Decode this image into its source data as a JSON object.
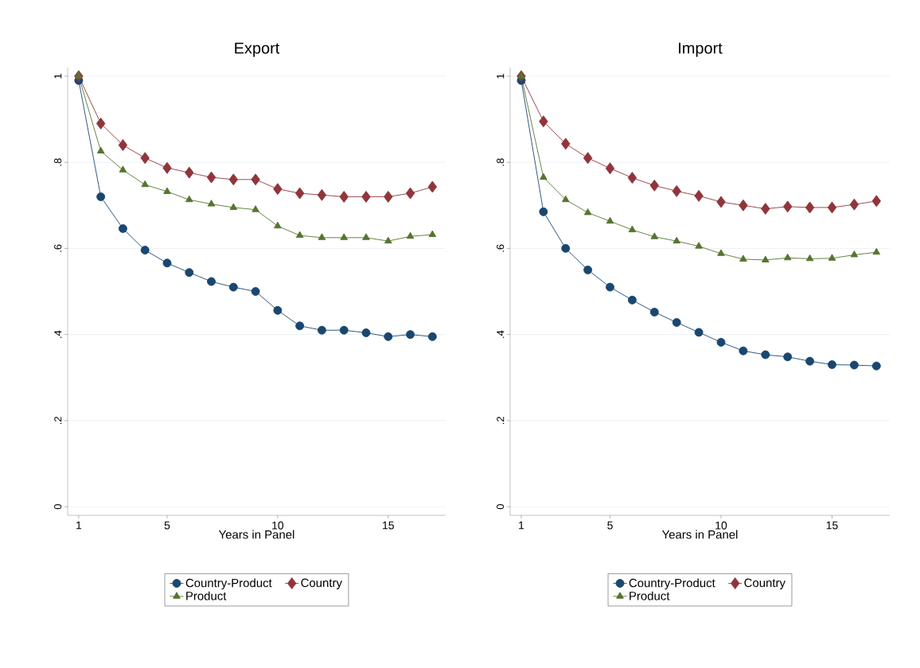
{
  "chart_data": [
    {
      "type": "line",
      "title": "Export",
      "xlabel": "Years in Panel",
      "x": [
        1,
        2,
        3,
        4,
        5,
        6,
        7,
        8,
        9,
        10,
        11,
        12,
        13,
        14,
        15,
        16,
        17
      ],
      "xlim": [
        0.5,
        17.6
      ],
      "ylim": [
        -0.02,
        1.02
      ],
      "xticks": [
        1,
        5,
        10,
        15
      ],
      "yticks": [
        0,
        {
          "value": 0.2,
          "label": ".2"
        },
        {
          "value": 0.4,
          "label": ".4"
        },
        {
          "value": 0.6,
          "label": ".6"
        },
        {
          "value": 0.8,
          "label": ".8"
        },
        1
      ],
      "grid": "y",
      "legend": "bottom",
      "line_style": "solid",
      "series": [
        {
          "name": "Country-Product",
          "color": "#1a476f",
          "marker": "circle",
          "values": [
            0.99,
            0.72,
            0.646,
            0.596,
            0.566,
            0.544,
            0.523,
            0.51,
            0.5,
            0.456,
            0.42,
            0.41,
            0.41,
            0.404,
            0.395,
            0.4,
            0.395
          ]
        },
        {
          "name": "Country",
          "color": "#90353b",
          "marker": "diamond",
          "values": [
            1.0,
            0.89,
            0.84,
            0.81,
            0.787,
            0.776,
            0.765,
            0.76,
            0.76,
            0.738,
            0.728,
            0.724,
            0.72,
            0.72,
            0.72,
            0.728,
            0.743
          ]
        },
        {
          "name": "Product",
          "color": "#55752f",
          "marker": "triangle",
          "values": [
            1.0,
            0.826,
            0.782,
            0.748,
            0.732,
            0.713,
            0.703,
            0.695,
            0.69,
            0.652,
            0.63,
            0.625,
            0.625,
            0.625,
            0.617,
            0.628,
            0.632
          ]
        }
      ]
    },
    {
      "type": "line",
      "title": "Import",
      "xlabel": "Years in Panel",
      "x": [
        1,
        2,
        3,
        4,
        5,
        6,
        7,
        8,
        9,
        10,
        11,
        12,
        13,
        14,
        15,
        16,
        17
      ],
      "xlim": [
        0.5,
        17.6
      ],
      "ylim": [
        -0.02,
        1.02
      ],
      "xticks": [
        1,
        5,
        10,
        15
      ],
      "yticks": [
        0,
        {
          "value": 0.2,
          "label": ".2"
        },
        {
          "value": 0.4,
          "label": ".4"
        },
        {
          "value": 0.6,
          "label": ".6"
        },
        {
          "value": 0.8,
          "label": ".8"
        },
        1
      ],
      "grid": "y",
      "legend": "bottom",
      "line_style": "solid",
      "series": [
        {
          "name": "Country-Product",
          "color": "#1a476f",
          "marker": "circle",
          "values": [
            0.99,
            0.685,
            0.6,
            0.55,
            0.51,
            0.48,
            0.452,
            0.428,
            0.405,
            0.382,
            0.362,
            0.353,
            0.348,
            0.338,
            0.33,
            0.329,
            0.327
          ]
        },
        {
          "name": "Country",
          "color": "#90353b",
          "marker": "diamond",
          "values": [
            1.0,
            0.895,
            0.843,
            0.81,
            0.786,
            0.764,
            0.746,
            0.733,
            0.722,
            0.708,
            0.7,
            0.692,
            0.697,
            0.695,
            0.695,
            0.702,
            0.71
          ]
        },
        {
          "name": "Product",
          "color": "#55752f",
          "marker": "triangle",
          "values": [
            1.0,
            0.765,
            0.713,
            0.683,
            0.663,
            0.643,
            0.627,
            0.617,
            0.605,
            0.588,
            0.575,
            0.573,
            0.578,
            0.576,
            0.577,
            0.585,
            0.591
          ]
        }
      ]
    }
  ]
}
